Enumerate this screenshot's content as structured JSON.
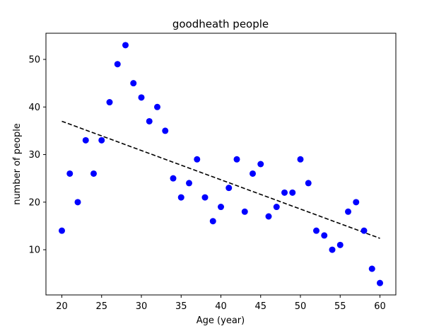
{
  "chart_data": {
    "type": "scatter",
    "title": "goodheath people",
    "xlabel": "Age (year)",
    "ylabel": "number of people",
    "xlim": [
      18,
      62
    ],
    "ylim": [
      0.5,
      55.5
    ],
    "xticks": [
      20,
      25,
      30,
      35,
      40,
      45,
      50,
      55,
      60
    ],
    "yticks": [
      10,
      20,
      30,
      40,
      50
    ],
    "grid": false,
    "series": [
      {
        "marker_color": "#0000ff",
        "x": [
          20,
          21,
          22,
          23,
          24,
          25,
          26,
          27,
          28,
          29,
          30,
          31,
          32,
          33,
          34,
          35,
          36,
          37,
          38,
          39,
          40,
          41,
          42,
          43,
          44,
          45,
          46,
          47,
          48,
          49,
          50,
          51,
          52,
          53,
          54,
          55,
          56,
          57,
          58,
          59,
          60
        ],
        "y": [
          14,
          26,
          20,
          33,
          26,
          33,
          41,
          49,
          53,
          45,
          42,
          37,
          40,
          35,
          25,
          21,
          24,
          29,
          21,
          16,
          19,
          23,
          29,
          18,
          26,
          28,
          17,
          19,
          22,
          22,
          29,
          24,
          14,
          13,
          10,
          11,
          18,
          20,
          14,
          6,
          3
        ]
      }
    ],
    "trendline": {
      "style": "dashed",
      "color": "#000000",
      "x": [
        20,
        60
      ],
      "y": [
        37.0,
        12.4
      ]
    }
  }
}
